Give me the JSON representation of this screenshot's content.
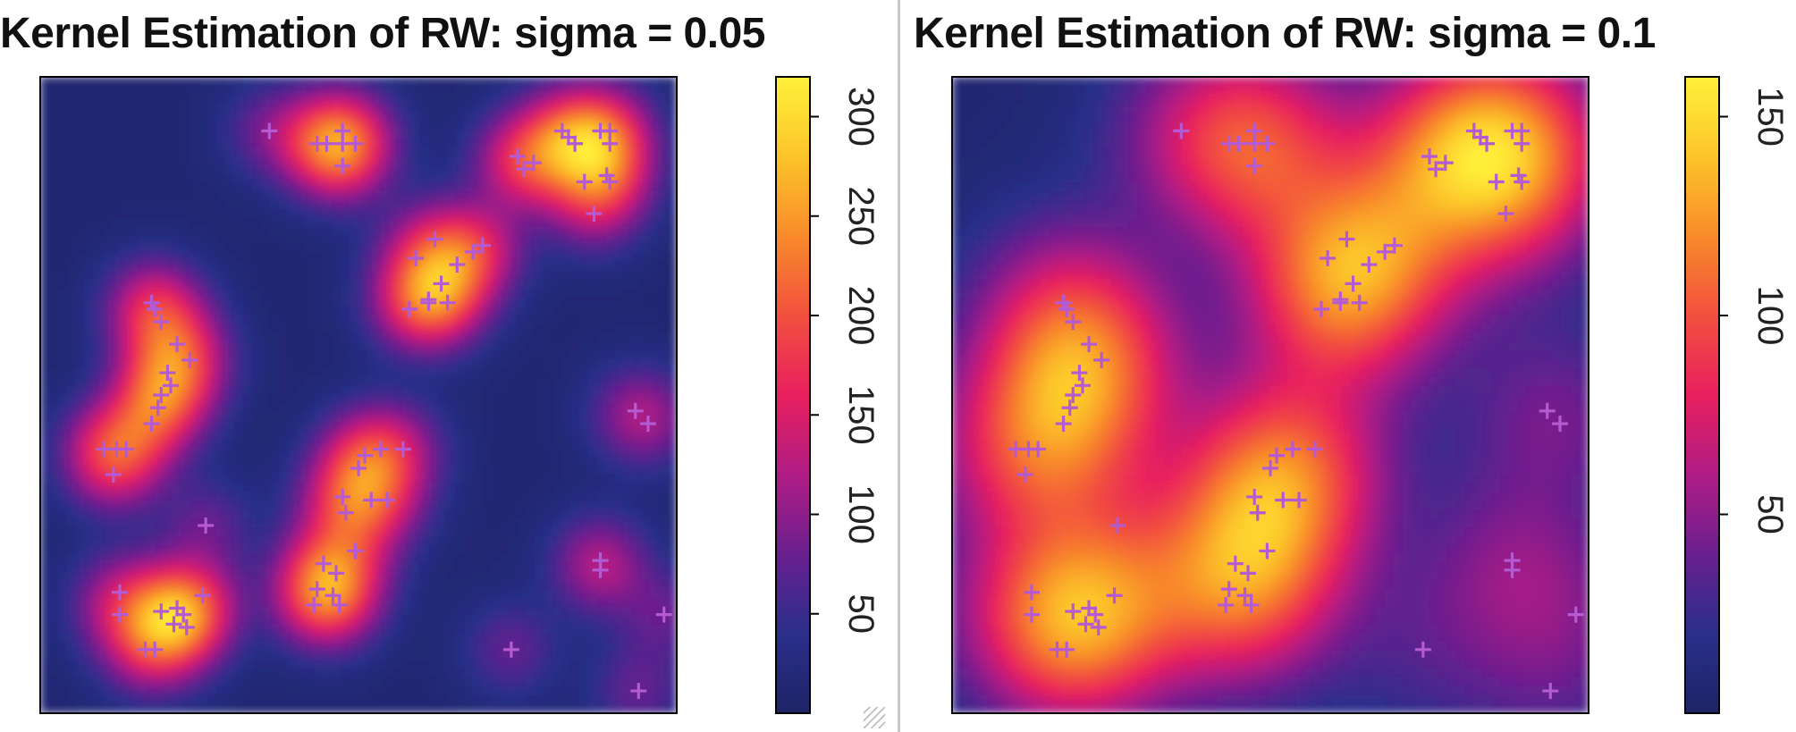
{
  "chart_data": [
    {
      "type": "heatmap",
      "title": "Kernel Estimation of RW: sigma = 0.05",
      "sigma": 0.05,
      "x": [
        0,
        1
      ],
      "y": [
        0,
        1
      ],
      "colorbar": {
        "ticks": [
          50,
          100,
          150,
          200,
          250,
          300
        ],
        "tick_labels": [
          "50",
          "100",
          "150",
          "200",
          "250",
          "300"
        ],
        "range": [
          0,
          320
        ]
      },
      "colormap": [
        "#1d2466",
        "#2a2f8a",
        "#6a1f8f",
        "#b01c85",
        "#e8205f",
        "#f2503e",
        "#f88a2a",
        "#fcc52a",
        "#fff03a"
      ],
      "marker": "+",
      "marker_color": "#b45ad2",
      "points": [
        [
          0.36,
          0.915
        ],
        [
          0.435,
          0.895
        ],
        [
          0.45,
          0.895
        ],
        [
          0.475,
          0.915
        ],
        [
          0.475,
          0.895
        ],
        [
          0.495,
          0.895
        ],
        [
          0.475,
          0.86
        ],
        [
          0.75,
          0.875
        ],
        [
          0.775,
          0.865
        ],
        [
          0.76,
          0.855
        ],
        [
          0.82,
          0.915
        ],
        [
          0.83,
          0.905
        ],
        [
          0.84,
          0.895
        ],
        [
          0.88,
          0.915
        ],
        [
          0.895,
          0.915
        ],
        [
          0.895,
          0.895
        ],
        [
          0.895,
          0.835
        ],
        [
          0.89,
          0.845
        ],
        [
          0.855,
          0.835
        ],
        [
          0.87,
          0.785
        ],
        [
          0.59,
          0.715
        ],
        [
          0.62,
          0.745
        ],
        [
          0.655,
          0.705
        ],
        [
          0.68,
          0.725
        ],
        [
          0.695,
          0.735
        ],
        [
          0.58,
          0.635
        ],
        [
          0.61,
          0.645
        ],
        [
          0.61,
          0.65
        ],
        [
          0.63,
          0.675
        ],
        [
          0.64,
          0.645
        ],
        [
          0.175,
          0.645
        ],
        [
          0.18,
          0.635
        ],
        [
          0.19,
          0.615
        ],
        [
          0.215,
          0.58
        ],
        [
          0.235,
          0.555
        ],
        [
          0.2,
          0.535
        ],
        [
          0.205,
          0.515
        ],
        [
          0.19,
          0.5
        ],
        [
          0.185,
          0.48
        ],
        [
          0.175,
          0.455
        ],
        [
          0.1,
          0.415
        ],
        [
          0.12,
          0.415
        ],
        [
          0.135,
          0.415
        ],
        [
          0.115,
          0.375
        ],
        [
          0.935,
          0.475
        ],
        [
          0.955,
          0.455
        ],
        [
          0.5,
          0.385
        ],
        [
          0.51,
          0.405
        ],
        [
          0.535,
          0.415
        ],
        [
          0.52,
          0.335
        ],
        [
          0.545,
          0.335
        ],
        [
          0.48,
          0.315
        ],
        [
          0.495,
          0.255
        ],
        [
          0.445,
          0.235
        ],
        [
          0.465,
          0.22
        ],
        [
          0.435,
          0.195
        ],
        [
          0.46,
          0.185
        ],
        [
          0.43,
          0.17
        ],
        [
          0.47,
          0.17
        ],
        [
          0.255,
          0.185
        ],
        [
          0.21,
          0.14
        ],
        [
          0.23,
          0.135
        ],
        [
          0.165,
          0.1
        ],
        [
          0.18,
          0.1
        ],
        [
          0.225,
          0.155
        ],
        [
          0.215,
          0.165
        ],
        [
          0.19,
          0.16
        ],
        [
          0.125,
          0.19
        ],
        [
          0.125,
          0.155
        ],
        [
          0.26,
          0.295
        ],
        [
          0.57,
          0.415
        ],
        [
          0.475,
          0.34
        ],
        [
          0.88,
          0.24
        ],
        [
          0.88,
          0.225
        ],
        [
          0.74,
          0.1
        ],
        [
          0.98,
          0.155
        ],
        [
          0.94,
          0.035
        ]
      ]
    },
    {
      "type": "heatmap",
      "title": "Kernel Estimation of RW: sigma = 0.1",
      "sigma": 0.1,
      "x": [
        0,
        1
      ],
      "y": [
        0,
        1
      ],
      "colorbar": {
        "ticks": [
          50,
          100,
          150
        ],
        "tick_labels": [
          "50",
          "100",
          "150"
        ],
        "range": [
          0,
          160
        ]
      },
      "colormap": [
        "#1d2466",
        "#2a2f8a",
        "#6a1f8f",
        "#b01c85",
        "#e8205f",
        "#f2503e",
        "#f88a2a",
        "#fcc52a",
        "#fff03a"
      ],
      "marker": "+",
      "marker_color": "#b45ad2",
      "points": [
        [
          0.36,
          0.915
        ],
        [
          0.435,
          0.895
        ],
        [
          0.45,
          0.895
        ],
        [
          0.475,
          0.915
        ],
        [
          0.475,
          0.895
        ],
        [
          0.495,
          0.895
        ],
        [
          0.475,
          0.86
        ],
        [
          0.75,
          0.875
        ],
        [
          0.775,
          0.865
        ],
        [
          0.76,
          0.855
        ],
        [
          0.82,
          0.915
        ],
        [
          0.83,
          0.905
        ],
        [
          0.84,
          0.895
        ],
        [
          0.88,
          0.915
        ],
        [
          0.895,
          0.915
        ],
        [
          0.895,
          0.895
        ],
        [
          0.895,
          0.835
        ],
        [
          0.89,
          0.845
        ],
        [
          0.855,
          0.835
        ],
        [
          0.87,
          0.785
        ],
        [
          0.59,
          0.715
        ],
        [
          0.62,
          0.745
        ],
        [
          0.655,
          0.705
        ],
        [
          0.68,
          0.725
        ],
        [
          0.695,
          0.735
        ],
        [
          0.58,
          0.635
        ],
        [
          0.61,
          0.645
        ],
        [
          0.61,
          0.65
        ],
        [
          0.63,
          0.675
        ],
        [
          0.64,
          0.645
        ],
        [
          0.175,
          0.645
        ],
        [
          0.18,
          0.635
        ],
        [
          0.19,
          0.615
        ],
        [
          0.215,
          0.58
        ],
        [
          0.235,
          0.555
        ],
        [
          0.2,
          0.535
        ],
        [
          0.205,
          0.515
        ],
        [
          0.19,
          0.5
        ],
        [
          0.185,
          0.48
        ],
        [
          0.175,
          0.455
        ],
        [
          0.1,
          0.415
        ],
        [
          0.12,
          0.415
        ],
        [
          0.135,
          0.415
        ],
        [
          0.115,
          0.375
        ],
        [
          0.935,
          0.475
        ],
        [
          0.955,
          0.455
        ],
        [
          0.5,
          0.385
        ],
        [
          0.51,
          0.405
        ],
        [
          0.535,
          0.415
        ],
        [
          0.52,
          0.335
        ],
        [
          0.545,
          0.335
        ],
        [
          0.48,
          0.315
        ],
        [
          0.495,
          0.255
        ],
        [
          0.445,
          0.235
        ],
        [
          0.465,
          0.22
        ],
        [
          0.435,
          0.195
        ],
        [
          0.46,
          0.185
        ],
        [
          0.43,
          0.17
        ],
        [
          0.47,
          0.17
        ],
        [
          0.255,
          0.185
        ],
        [
          0.21,
          0.14
        ],
        [
          0.23,
          0.135
        ],
        [
          0.165,
          0.1
        ],
        [
          0.18,
          0.1
        ],
        [
          0.225,
          0.155
        ],
        [
          0.215,
          0.165
        ],
        [
          0.19,
          0.16
        ],
        [
          0.125,
          0.19
        ],
        [
          0.125,
          0.155
        ],
        [
          0.26,
          0.295
        ],
        [
          0.57,
          0.415
        ],
        [
          0.475,
          0.34
        ],
        [
          0.88,
          0.24
        ],
        [
          0.88,
          0.225
        ],
        [
          0.74,
          0.1
        ],
        [
          0.98,
          0.155
        ],
        [
          0.94,
          0.035
        ]
      ]
    }
  ]
}
